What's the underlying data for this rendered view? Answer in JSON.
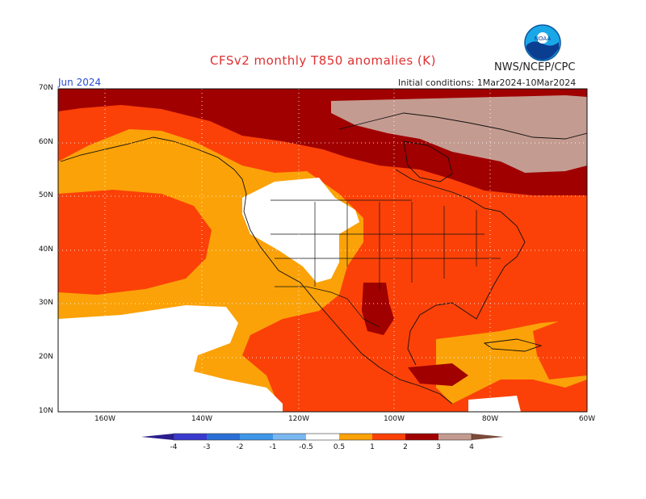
{
  "header": {
    "title": "CFSv2 monthly T850 anomalies (K)",
    "org": "NWS/NCEP/CPC",
    "month": "Jun 2024",
    "initial_conditions": "Initial conditions: 1Mar2024-10Mar2024",
    "logo_text": "NOAA"
  },
  "axes": {
    "lat_labels": [
      "70N",
      "60N",
      "50N",
      "40N",
      "30N",
      "20N",
      "10N"
    ],
    "lon_labels": [
      "160W",
      "140W",
      "120W",
      "100W",
      "80W",
      "60W"
    ]
  },
  "colorbar": {
    "labels": [
      "-4",
      "-3",
      "-2",
      "-1",
      "-0.5",
      "0.5",
      "1",
      "2",
      "3",
      "4"
    ],
    "colors": {
      "lt_m4": "#2a1e8c",
      "m4_m3": "#3a3acf",
      "m3_m2": "#2a6fd6",
      "m2_m1": "#3f96e8",
      "m1_m05": "#7ab8f2",
      "m05_05": "#ffffff",
      "c05_1": "#fba208",
      "c1_2": "#fb4108",
      "c2_3": "#a00000",
      "c3_4": "#c49b90",
      "gt_4": "#7a4a3a"
    }
  }
}
